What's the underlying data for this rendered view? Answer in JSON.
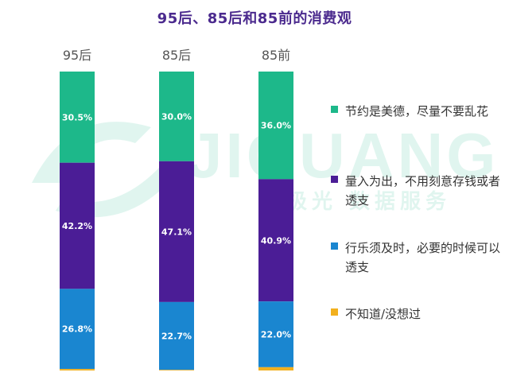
{
  "chart_data": {
    "type": "bar",
    "stacked": true,
    "title": "95后、85后和85前的消费观",
    "categories": [
      "95后",
      "85后",
      "85前"
    ],
    "series": [
      {
        "name": "节约是美德，尽量不要乱花",
        "color": "#1DB88A",
        "values": [
          30.5,
          30.0,
          36.0
        ],
        "labels": [
          "30.5%",
          "30.0%",
          "36.0%"
        ]
      },
      {
        "name": "量入为出，不用刻意存钱或者透支",
        "color": "#4B1D96",
        "values": [
          42.2,
          47.1,
          40.9
        ],
        "labels": [
          "42.2%",
          "47.1%",
          "40.9%"
        ]
      },
      {
        "name": "行乐须及时，必要的时候可以透支",
        "color": "#1A86D0",
        "values": [
          26.8,
          22.7,
          22.0
        ],
        "labels": [
          "26.8%",
          "22.7%",
          "22.0%"
        ]
      },
      {
        "name": "不知道/没想过",
        "color": "#F2B01E",
        "values": [
          0.5,
          0.2,
          1.1
        ],
        "labels": [
          "",
          "",
          ""
        ]
      }
    ],
    "ylim": [
      0,
      100
    ]
  },
  "watermark": {
    "big": "JIGUANG",
    "small": "极光 数据服务"
  }
}
